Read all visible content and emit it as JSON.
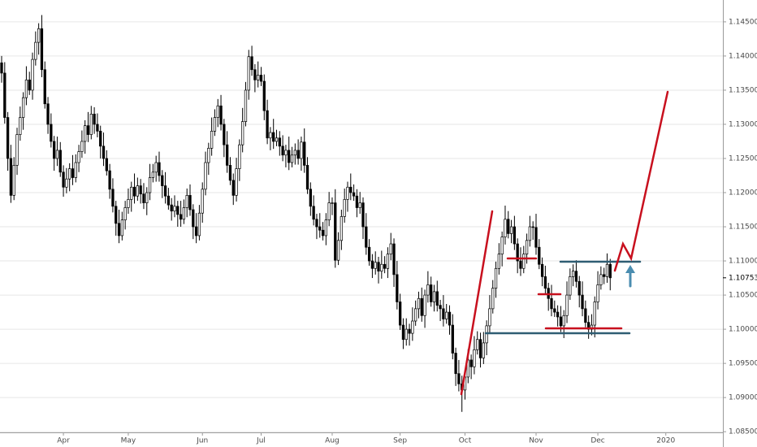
{
  "chart_data": {
    "type": "candlestick",
    "x": [
      0,
      1,
      2,
      3,
      4,
      5,
      6,
      7,
      8,
      9,
      10,
      11,
      12,
      13,
      14,
      15,
      16,
      17,
      18,
      19,
      20,
      21,
      22,
      23,
      24,
      25,
      26,
      27,
      28,
      29,
      30,
      31,
      32,
      33,
      34,
      35,
      36,
      37,
      38,
      39,
      40,
      41,
      42,
      43,
      44,
      45,
      46,
      47,
      48,
      49,
      50,
      51,
      52,
      53,
      54,
      55,
      56,
      57,
      58,
      59,
      60,
      61,
      62,
      63,
      64,
      65,
      66,
      67,
      68,
      69,
      70,
      71,
      72,
      73,
      74,
      75,
      76,
      77,
      78,
      79,
      80,
      81,
      82,
      83,
      84,
      85,
      86,
      87,
      88,
      89,
      90,
      91,
      92,
      93,
      94,
      95,
      96,
      97,
      98,
      99,
      100,
      101,
      102,
      103,
      104,
      105,
      106,
      107,
      108,
      109,
      110,
      111,
      112,
      113,
      114,
      115,
      116,
      117,
      118,
      119,
      120,
      121,
      122,
      123,
      124,
      125,
      126,
      127,
      128,
      129,
      130,
      131,
      132,
      133,
      134,
      135,
      136,
      137,
      138,
      139,
      140,
      141,
      142,
      143,
      144,
      145,
      146,
      147,
      148,
      149,
      150,
      151,
      152,
      153,
      154,
      155,
      156,
      157,
      158,
      159,
      160,
      161,
      162,
      163,
      164,
      165,
      166,
      167,
      168,
      169,
      170,
      171,
      172,
      173,
      174,
      175,
      176,
      177,
      178,
      179,
      180,
      181,
      182,
      183,
      184,
      185,
      186,
      187,
      188,
      189,
      190,
      191,
      192,
      193,
      194,
      195,
      196,
      197
    ],
    "open": [
      1.139,
      1.1375,
      1.131,
      1.125,
      1.1196,
      1.124,
      1.1285,
      1.131,
      1.1339,
      1.1365,
      1.135,
      1.1395,
      1.142,
      1.144,
      1.138,
      1.133,
      1.13,
      1.1275,
      1.125,
      1.1262,
      1.123,
      1.1208,
      1.122,
      1.1235,
      1.1222,
      1.1244,
      1.126,
      1.1275,
      1.1298,
      1.1285,
      1.1315,
      1.13,
      1.129,
      1.1268,
      1.125,
      1.1232,
      1.1205,
      1.118,
      1.1155,
      1.1137,
      1.116,
      1.1178,
      1.119,
      1.1208,
      1.1195,
      1.121,
      1.1198,
      1.1185,
      1.12,
      1.1222,
      1.123,
      1.1244,
      1.1225,
      1.121,
      1.1195,
      1.1182,
      1.1173,
      1.118,
      1.1168,
      1.1161,
      1.1178,
      1.1196,
      1.1175,
      1.115,
      1.1137,
      1.117,
      1.1205,
      1.1244,
      1.1265,
      1.129,
      1.131,
      1.1327,
      1.13,
      1.127,
      1.124,
      1.1218,
      1.1196,
      1.1235,
      1.127,
      1.1304,
      1.135,
      1.1399,
      1.138,
      1.1365,
      1.1372,
      1.1363,
      1.132,
      1.128,
      1.1288,
      1.1275,
      1.128,
      1.1268,
      1.1255,
      1.1262,
      1.1244,
      1.1255,
      1.1262,
      1.125,
      1.1274,
      1.124,
      1.1205,
      1.118,
      1.1161,
      1.115,
      1.1145,
      1.1137,
      1.116,
      1.1185,
      1.1185,
      1.1101,
      1.113,
      1.1165,
      1.119,
      1.1208,
      1.12,
      1.1195,
      1.1178,
      1.1185,
      1.115,
      1.112,
      1.11,
      1.1089,
      1.1098,
      1.1085,
      1.1095,
      1.1089,
      1.111,
      1.1125,
      1.108,
      1.104,
      1.1006,
      1.0985,
      1.1,
      1.0994,
      1.1012,
      1.103,
      1.1045,
      1.102,
      1.105,
      1.1065,
      1.104,
      1.1055,
      1.1035,
      1.103,
      1.1015,
      1.1025,
      1.1006,
      1.0965,
      1.0935,
      1.092,
      1.0911,
      1.093,
      1.0955,
      1.0945,
      1.097,
      1.0985,
      1.0958,
      1.098,
      1.1005,
      1.103,
      1.106,
      1.1089,
      1.111,
      1.1135,
      1.1161,
      1.114,
      1.115,
      1.1125,
      1.11,
      1.1089,
      1.111,
      1.113,
      1.115,
      1.1149,
      1.112,
      1.1095,
      1.1077,
      1.106,
      1.1045,
      1.103,
      1.1025,
      1.1018,
      1.1005,
      1.102,
      1.105,
      1.1077,
      1.1085,
      1.107,
      1.105,
      1.103,
      1.101,
      1.1,
      1.1006,
      1.104,
      1.1065,
      1.108,
      1.1077,
      1.1095
    ],
    "high": [
      1.14,
      1.1391,
      1.1318,
      1.127,
      1.1252,
      1.1295,
      1.1326,
      1.1347,
      1.1385,
      1.1377,
      1.1405,
      1.1436,
      1.1448,
      1.146,
      1.1392,
      1.134,
      1.1316,
      1.1283,
      1.1282,
      1.1274,
      1.124,
      1.1236,
      1.1243,
      1.1255,
      1.1256,
      1.127,
      1.1291,
      1.1306,
      1.1318,
      1.1327,
      1.1325,
      1.1316,
      1.1298,
      1.1288,
      1.1262,
      1.1242,
      1.1221,
      1.1188,
      1.1175,
      1.1172,
      1.1188,
      1.1206,
      1.1216,
      1.1228,
      1.1222,
      1.122,
      1.1214,
      1.1208,
      1.1242,
      1.1242,
      1.1254,
      1.126,
      1.1233,
      1.123,
      1.1207,
      1.1192,
      1.1196,
      1.1188,
      1.1188,
      1.119,
      1.1206,
      1.1212,
      1.1183,
      1.117,
      1.1182,
      1.1215,
      1.126,
      1.1273,
      1.131,
      1.1322,
      1.1337,
      1.1343,
      1.1308,
      1.129,
      1.1252,
      1.1228,
      1.1251,
      1.1278,
      1.1324,
      1.1362,
      1.1409,
      1.1415,
      1.1388,
      1.1392,
      1.1384,
      1.1373,
      1.1336,
      1.1296,
      1.1308,
      1.1292,
      1.129,
      1.1284,
      1.127,
      1.1282,
      1.1267,
      1.1272,
      1.1278,
      1.1282,
      1.1294,
      1.1252,
      1.1215,
      1.1196,
      1.1169,
      1.117,
      1.1157,
      1.117,
      1.1201,
      1.1193,
      1.1205,
      1.1142,
      1.1175,
      1.1206,
      1.1216,
      1.1228,
      1.1212,
      1.1205,
      1.1201,
      1.1193,
      1.117,
      1.1132,
      1.111,
      1.1114,
      1.1106,
      1.1115,
      1.1107,
      1.112,
      1.1141,
      1.1133,
      1.11,
      1.1052,
      1.1016,
      1.1016,
      1.1008,
      1.1032,
      1.1042,
      1.1055,
      1.1061,
      1.1058,
      1.1085,
      1.1077,
      1.1065,
      1.1071,
      1.1043,
      1.105,
      1.1037,
      1.1035,
      1.1022,
      1.0973,
      1.0955,
      1.0932,
      1.094,
      1.0971,
      1.0963,
      1.099,
      1.0997,
      1.0995,
      1.0996,
      1.1013,
      1.105,
      1.1072,
      1.1099,
      1.1126,
      1.1143,
      1.1181,
      1.1173,
      1.116,
      1.1166,
      1.1133,
      1.112,
      1.1122,
      1.114,
      1.1166,
      1.1158,
      1.1169,
      1.1132,
      1.1105,
      1.1093,
      1.1068,
      1.1065,
      1.1042,
      1.1035,
      1.1034,
      1.1028,
      1.107,
      1.1089,
      1.1095,
      1.1101,
      1.1078,
      1.107,
      1.1042,
      1.102,
      1.1022,
      1.1048,
      1.1085,
      1.1092,
      1.109,
      1.1111,
      1.1103
    ],
    "low": [
      1.1361,
      1.1301,
      1.1232,
      1.1185,
      1.1189,
      1.1226,
      1.1276,
      1.1292,
      1.1328,
      1.1343,
      1.1336,
      1.1386,
      1.1402,
      1.1369,
      1.1323,
      1.1286,
      1.1266,
      1.1232,
      1.1239,
      1.1223,
      1.1194,
      1.1199,
      1.1202,
      1.1211,
      1.1215,
      1.123,
      1.1251,
      1.1257,
      1.1274,
      1.1278,
      1.1286,
      1.1281,
      1.125,
      1.1239,
      1.1225,
      1.1191,
      1.1171,
      1.1137,
      1.1126,
      1.113,
      1.1146,
      1.1169,
      1.1172,
      1.1184,
      1.1188,
      1.1184,
      1.1176,
      1.1167,
      1.1189,
      1.1215,
      1.1216,
      1.1216,
      1.1192,
      1.1184,
      1.1175,
      1.1159,
      1.1164,
      1.115,
      1.115,
      1.1154,
      1.1164,
      1.1166,
      1.1132,
      1.1126,
      1.113,
      1.1156,
      1.1196,
      1.1226,
      1.1254,
      1.1283,
      1.1296,
      1.1291,
      1.1252,
      1.1229,
      1.1211,
      1.1182,
      1.1187,
      1.1217,
      1.1259,
      1.1297,
      1.1336,
      1.1371,
      1.1347,
      1.1354,
      1.1356,
      1.1306,
      1.1271,
      1.1262,
      1.1264,
      1.1268,
      1.1254,
      1.1246,
      1.1237,
      1.1233,
      1.1237,
      1.1241,
      1.1241,
      1.1232,
      1.1229,
      1.1198,
      1.1166,
      1.1152,
      1.1132,
      1.1134,
      1.113,
      1.1123,
      1.1151,
      1.1167,
      1.109,
      1.1094,
      1.1116,
      1.1156,
      1.1172,
      1.1189,
      1.1188,
      1.1164,
      1.1169,
      1.1132,
      1.1109,
      1.1093,
      1.1075,
      1.108,
      1.1067,
      1.1074,
      1.1082,
      1.1075,
      1.1101,
      1.1062,
      1.1029,
      1.0999,
      1.0971,
      1.0976,
      1.0976,
      1.0983,
      1.1005,
      1.1016,
      1.1011,
      1.1002,
      1.1039,
      1.1033,
      1.1026,
      1.1026,
      1.1012,
      1.1004,
      1.1008,
      1.0992,
      1.0956,
      1.0917,
      1.0909,
      1.0879,
      1.0897,
      1.0921,
      1.0927,
      1.0934,
      1.0963,
      1.0944,
      1.0949,
      1.0962,
      1.0994,
      1.1023,
      1.1046,
      1.108,
      1.1092,
      1.1124,
      1.1133,
      1.1126,
      1.1116,
      1.1082,
      1.1078,
      1.1082,
      1.1096,
      1.1121,
      1.1131,
      1.1109,
      1.1088,
      1.1063,
      1.1051,
      1.1027,
      1.1019,
      1.1018,
      1.1004,
      1.0996,
      1.0987,
      1.1009,
      1.1043,
      1.1063,
      1.1061,
      1.1032,
      1.1019,
      1.1003,
      1.0986,
      1.0991,
      1.0988,
      1.1029,
      1.1058,
      1.1066,
      1.1068,
      1.1057
    ],
    "close": [
      1.1375,
      1.131,
      1.125,
      1.1196,
      1.124,
      1.1285,
      1.131,
      1.1339,
      1.1365,
      1.135,
      1.1395,
      1.142,
      1.144,
      1.138,
      1.133,
      1.13,
      1.1275,
      1.125,
      1.1262,
      1.123,
      1.1208,
      1.122,
      1.1235,
      1.1222,
      1.1244,
      1.126,
      1.1275,
      1.1298,
      1.1285,
      1.1315,
      1.13,
      1.129,
      1.1268,
      1.125,
      1.1232,
      1.1205,
      1.118,
      1.1155,
      1.1137,
      1.116,
      1.1178,
      1.119,
      1.1208,
      1.1195,
      1.121,
      1.1198,
      1.1185,
      1.12,
      1.1222,
      1.123,
      1.1244,
      1.1225,
      1.121,
      1.1195,
      1.1182,
      1.1173,
      1.118,
      1.1168,
      1.1161,
      1.1178,
      1.1196,
      1.1175,
      1.115,
      1.1137,
      1.117,
      1.1205,
      1.1244,
      1.1265,
      1.129,
      1.131,
      1.1327,
      1.13,
      1.127,
      1.124,
      1.1218,
      1.1196,
      1.1235,
      1.127,
      1.1304,
      1.135,
      1.1399,
      1.138,
      1.1365,
      1.1372,
      1.1363,
      1.132,
      1.128,
      1.1288,
      1.1275,
      1.128,
      1.1268,
      1.1255,
      1.1262,
      1.1244,
      1.1255,
      1.1262,
      1.125,
      1.1274,
      1.124,
      1.1205,
      1.118,
      1.1161,
      1.115,
      1.1145,
      1.1137,
      1.116,
      1.1185,
      1.1185,
      1.1101,
      1.113,
      1.1165,
      1.119,
      1.1208,
      1.12,
      1.1195,
      1.1178,
      1.1185,
      1.115,
      1.112,
      1.11,
      1.1089,
      1.1098,
      1.1085,
      1.1095,
      1.1089,
      1.111,
      1.1125,
      1.108,
      1.104,
      1.1006,
      1.0985,
      1.1,
      1.0994,
      1.1012,
      1.103,
      1.1045,
      1.102,
      1.105,
      1.1065,
      1.104,
      1.1055,
      1.1035,
      1.103,
      1.1015,
      1.1025,
      1.1006,
      1.0965,
      1.0935,
      1.092,
      1.0911,
      1.093,
      1.0955,
      1.0945,
      1.097,
      1.0985,
      1.0958,
      1.098,
      1.1005,
      1.103,
      1.106,
      1.1089,
      1.111,
      1.1135,
      1.1161,
      1.114,
      1.115,
      1.1125,
      1.11,
      1.1089,
      1.111,
      1.113,
      1.115,
      1.1149,
      1.112,
      1.1095,
      1.1077,
      1.106,
      1.1045,
      1.103,
      1.1025,
      1.1018,
      1.1005,
      1.102,
      1.105,
      1.1077,
      1.1085,
      1.107,
      1.105,
      1.103,
      1.101,
      1.1,
      1.1006,
      1.104,
      1.1065,
      1.108,
      1.1077,
      1.1095,
      1.10753
    ],
    "up_color": "#ffffff",
    "down_color": "#000000",
    "xlim": [
      0,
      234
    ],
    "xticks": [
      {
        "value": 20,
        "label": "Apr"
      },
      {
        "value": 41,
        "label": "May"
      },
      {
        "value": 65,
        "label": "Jun"
      },
      {
        "value": 84,
        "label": "Jul"
      },
      {
        "value": 107,
        "label": "Aug"
      },
      {
        "value": 129,
        "label": "Sep"
      },
      {
        "value": 150,
        "label": "Oct"
      },
      {
        "value": 173,
        "label": "Nov"
      },
      {
        "value": 193,
        "label": "Dec"
      },
      {
        "value": 215,
        "label": "2020"
      }
    ],
    "ylim": [
      1.0849,
      1.1482
    ],
    "yticks": [
      {
        "value": 1.085,
        "label": "1.08500"
      },
      {
        "value": 1.09,
        "label": "1.09000"
      },
      {
        "value": 1.095,
        "label": "1.09500"
      },
      {
        "value": 1.1,
        "label": "1.10000"
      },
      {
        "value": 1.105,
        "label": "1.10500"
      },
      {
        "value": 1.11,
        "label": "1.11000"
      },
      {
        "value": 1.115,
        "label": "1.11500"
      },
      {
        "value": 1.12,
        "label": "1.12000"
      },
      {
        "value": 1.125,
        "label": "1.12500"
      },
      {
        "value": 1.13,
        "label": "1.13000"
      },
      {
        "value": 1.135,
        "label": "1.13500"
      },
      {
        "value": 1.14,
        "label": "1.14000"
      },
      {
        "value": 1.145,
        "label": "1.14500"
      }
    ],
    "grid": true,
    "last_price": 1.10753
  }
}
